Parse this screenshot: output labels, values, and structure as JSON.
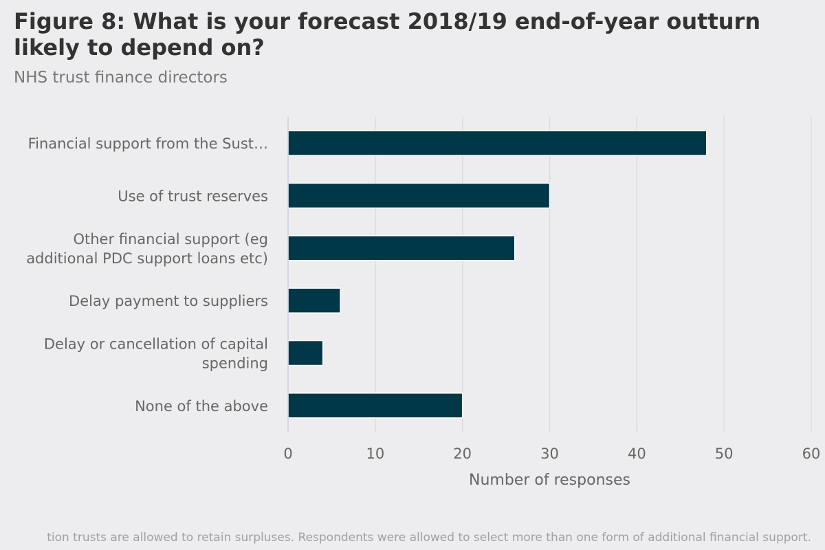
{
  "title": "Figure 8: What is your forecast 2018/19 end-of-year outturn likely to depend on?",
  "subtitle": "NHS trust finance directors",
  "footnote": "tion trusts are allowed to retain surpluses. Respondents were allowed to select more than one form of additional financial support.",
  "colors": {
    "bar": "#003847",
    "grid": "#dcdce0",
    "axis": "#c8d0e0",
    "text": "#666666"
  },
  "chart_data": {
    "type": "bar",
    "orientation": "horizontal",
    "categories": [
      "Financial support from the Sust…",
      "Use of trust reserves",
      "Other financial support (eg additional PDC support loans etc)",
      "Delay payment to suppliers",
      "Delay or cancellation of capital spending",
      "None of the above"
    ],
    "category_lines": [
      [
        "Financial support from the Sust…"
      ],
      [
        "Use of trust reserves"
      ],
      [
        "Other financial support (eg",
        "additional PDC support loans etc)"
      ],
      [
        "Delay payment to suppliers"
      ],
      [
        "Delay or cancellation of capital",
        "spending"
      ],
      [
        "None of the above"
      ]
    ],
    "values": [
      48,
      30,
      26,
      6,
      4,
      20
    ],
    "xlabel": "Number of responses",
    "ylabel": "",
    "xlim": [
      0,
      60
    ],
    "xticks": [
      0,
      10,
      20,
      30,
      40,
      50,
      60
    ],
    "grid": true,
    "legend": "none"
  }
}
